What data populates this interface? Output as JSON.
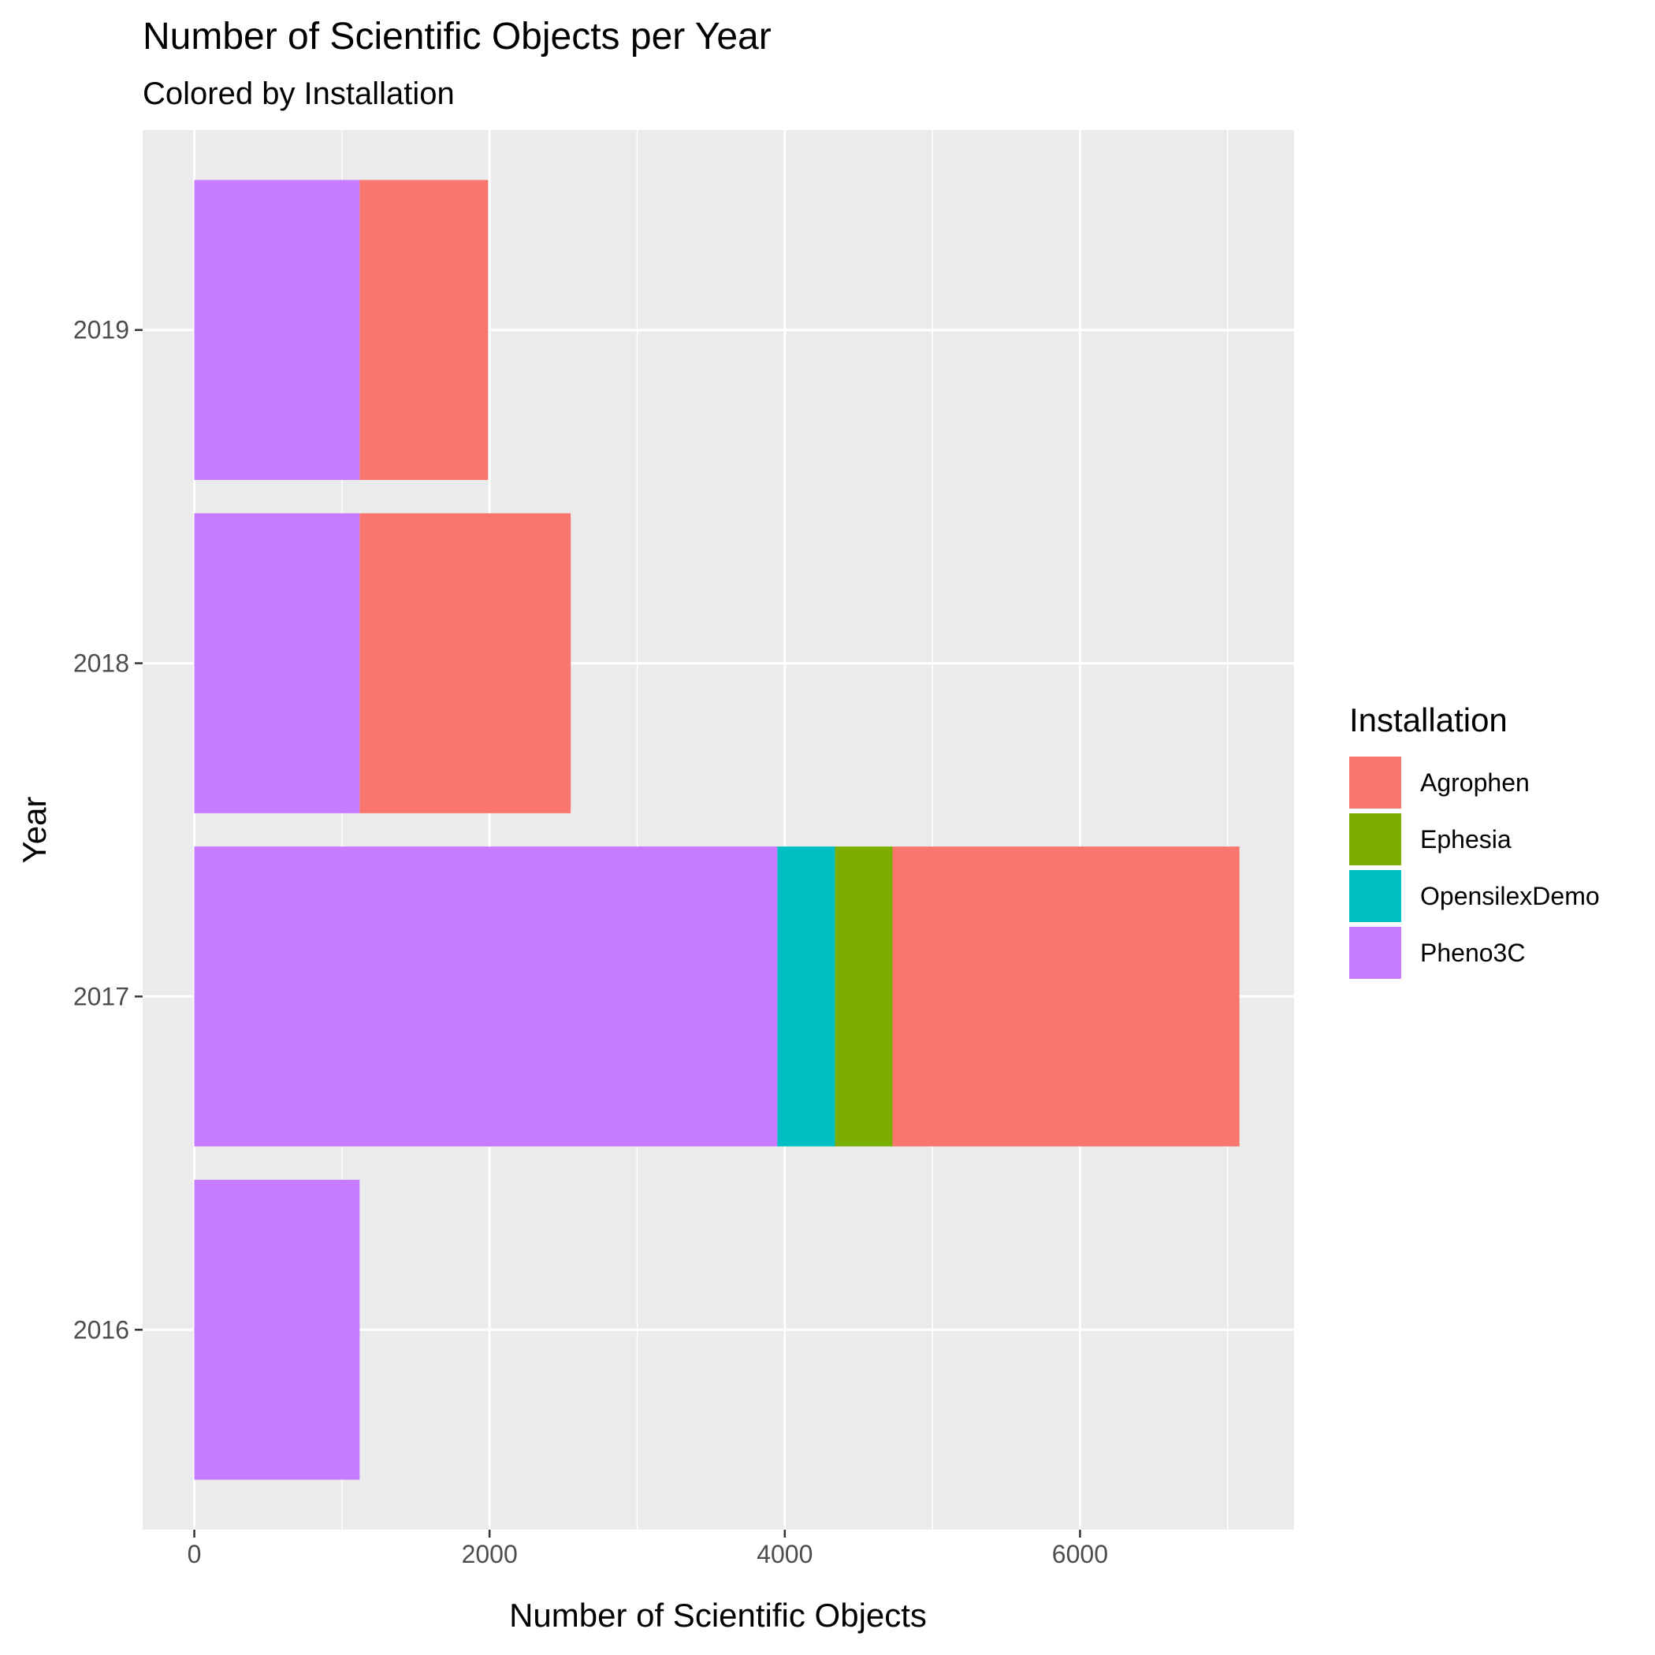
{
  "chart_data": {
    "type": "bar",
    "orientation": "horizontal",
    "stacked": true,
    "title": "Number of Scientific Objects per Year",
    "subtitle": "Colored by Installation",
    "xlabel": "Number of Scientific Objects",
    "ylabel": "Year",
    "categories": [
      "2016",
      "2017",
      "2018",
      "2019"
    ],
    "xlim": [
      -350,
      7450
    ],
    "xticks": [
      "0",
      "2000",
      "4000",
      "6000"
    ],
    "xtick_values": [
      0,
      2000,
      4000,
      6000
    ],
    "grid": true,
    "legend_position": "right",
    "legend": {
      "title": "Installation",
      "items": [
        "Agrophen",
        "Ephesia",
        "OpensilexDemo",
        "Pheno3C"
      ]
    },
    "series": [
      {
        "name": "Pheno3C",
        "color": "#C77CFF",
        "values": [
          1120,
          3950,
          1120,
          1120
        ]
      },
      {
        "name": "OpensilexDemo",
        "color": "#00BFC4",
        "values": [
          0,
          390,
          0,
          0
        ]
      },
      {
        "name": "Ephesia",
        "color": "#7CAE00",
        "values": [
          0,
          390,
          0,
          0
        ]
      },
      {
        "name": "Agrophen",
        "color": "#F8766D",
        "values": [
          0,
          2350,
          1430,
          870
        ]
      }
    ],
    "legend_colors": {
      "Agrophen": "#F8766D",
      "Ephesia": "#7CAE00",
      "OpensilexDemo": "#00BFC4",
      "Pheno3C": "#C77CFF"
    },
    "panel_background": "#EBEBEB",
    "grid_color": "#FFFFFF"
  }
}
